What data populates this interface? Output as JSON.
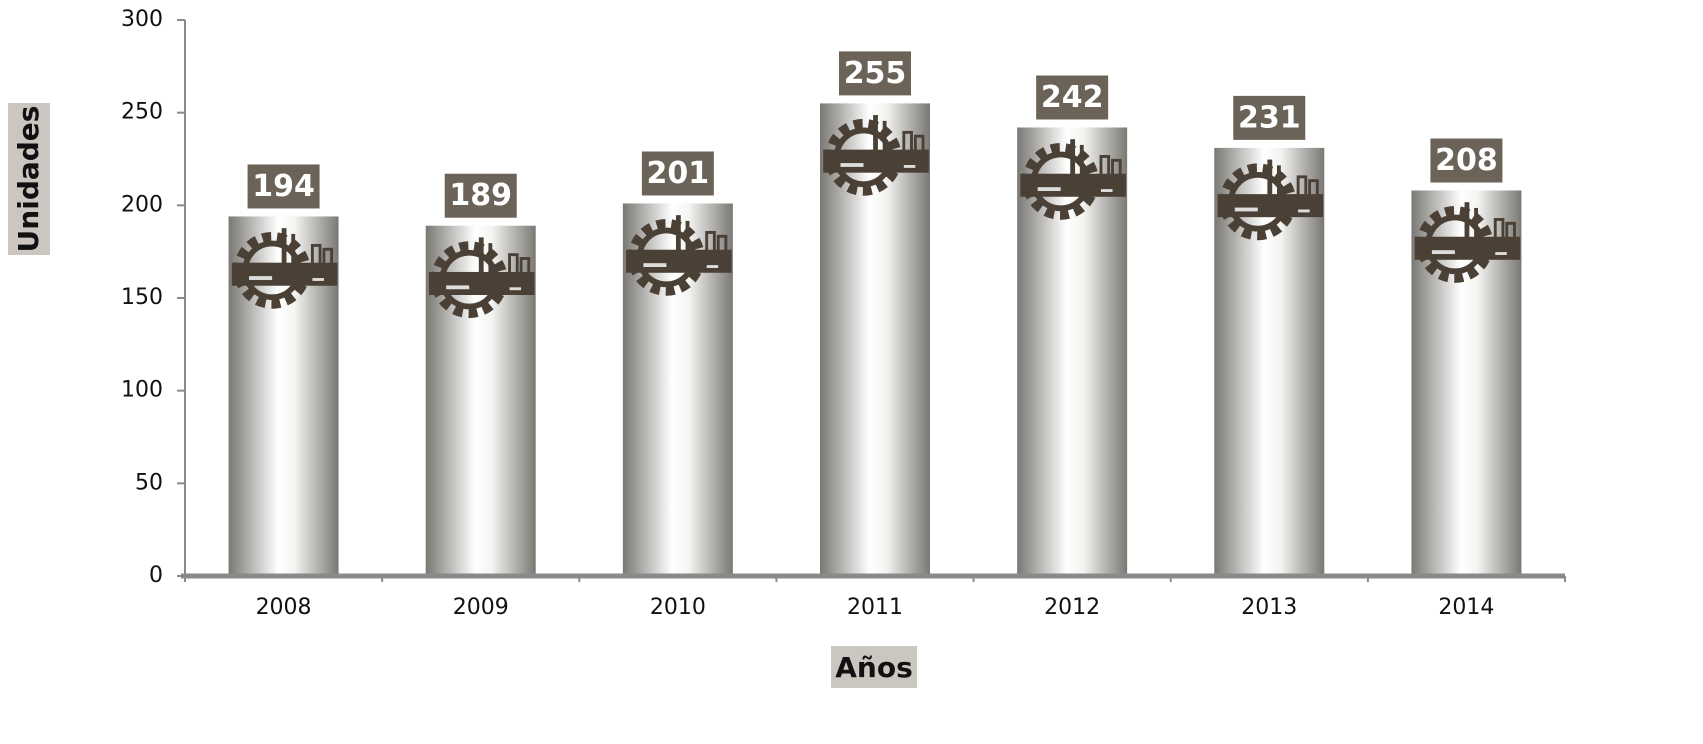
{
  "chart_data": {
    "type": "bar",
    "x_label": "Años",
    "y_label": "Unidades",
    "categories": [
      "2008",
      "2009",
      "2010",
      "2011",
      "2012",
      "2013",
      "2014"
    ],
    "values": [
      194,
      189,
      201,
      255,
      242,
      231,
      208
    ],
    "color": "#7a7873",
    "label_color": "#6b6358",
    "ylim": [
      0,
      300
    ],
    "yticks": [
      0,
      50,
      100,
      150,
      200,
      250,
      300
    ],
    "grid": false
  }
}
